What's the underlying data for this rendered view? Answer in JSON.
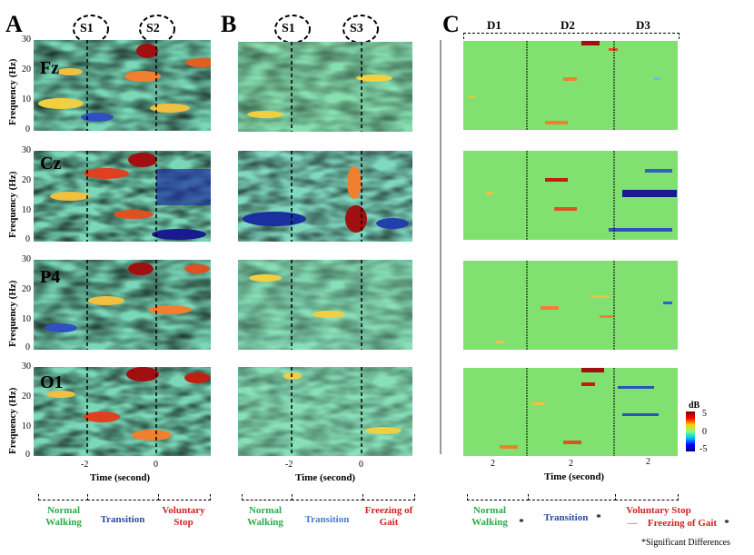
{
  "panels": {
    "a": "A",
    "b": "B",
    "c": "C"
  },
  "events": {
    "s1": "S1",
    "s2": "S2",
    "s3": "S3"
  },
  "channels": [
    "Fz",
    "Cz",
    "P4",
    "O1"
  ],
  "y_axis_label": "Frequency (Hz)",
  "y_ticks": [
    "30",
    "20",
    "10",
    "0"
  ],
  "x_ticks_ab": [
    "-2",
    "0"
  ],
  "x_ticks_c": [
    "2",
    "2",
    "2"
  ],
  "x_axis_label": "Time (second)",
  "diff_periods": [
    "D1",
    "D2",
    "D3"
  ],
  "colorbar": {
    "title": "dB",
    "max": "5",
    "mid": "0",
    "min": "-5"
  },
  "phases_a": [
    {
      "name": "Normal Walking",
      "color": "#2eaa4a"
    },
    {
      "name": "Transition",
      "color": "#2a4a9a"
    },
    {
      "name": "Voluntary Stop",
      "color": "#d02020"
    }
  ],
  "phases_b": [
    {
      "name": "Normal Walking",
      "color": "#2eaa4a"
    },
    {
      "name": "Transition",
      "color": "#4a7ac8"
    },
    {
      "name": "Freezing of Gait",
      "color": "#d02020"
    }
  ],
  "phases_c": [
    {
      "name": "Normal Walking",
      "color": "#2eaa4a"
    },
    {
      "name": "Transition",
      "color": "#2a4a9a"
    },
    {
      "name": "Voluntary Stop",
      "color": "#d02020"
    },
    {
      "name": "Freezing of Gait",
      "color": "#d02020"
    }
  ],
  "star": "*",
  "dash_mark": "—",
  "footnote": "*Significant Differences"
}
